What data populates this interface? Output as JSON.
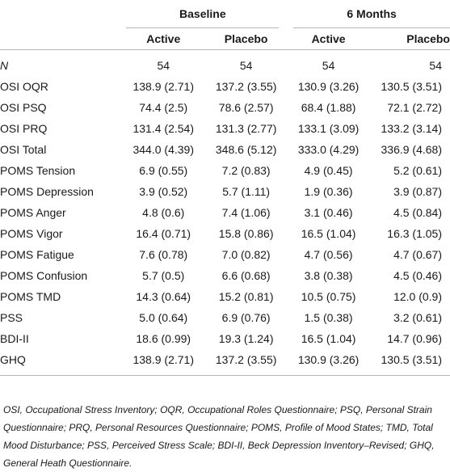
{
  "table": {
    "groups": [
      "Baseline",
      "6 Months"
    ],
    "arms": [
      "Active",
      "Placebo",
      "Active",
      "Placebo"
    ],
    "rows": [
      {
        "label": "N",
        "values": [
          "54",
          "54",
          "54",
          "54"
        ]
      },
      {
        "label": "OSI OQR",
        "values": [
          "138.9 (2.71)",
          "137.2 (3.55)",
          "130.9 (3.26)",
          "130.5 (3.51)"
        ]
      },
      {
        "label": "OSI PSQ",
        "values": [
          "74.4 (2.5)",
          "78.6 (2.57)",
          "68.4 (1.88)",
          "72.1 (2.72)"
        ]
      },
      {
        "label": "OSI PRQ",
        "values": [
          "131.4 (2.54)",
          "131.3 (2.77)",
          "133.1 (3.09)",
          "133.2 (3.14)"
        ]
      },
      {
        "label": "OSI Total",
        "values": [
          "344.0 (4.39)",
          "348.6 (5.12)",
          "333.0 (4.29)",
          "336.9 (4.68)"
        ]
      },
      {
        "label": "POMS Tension",
        "values": [
          "6.9 (0.55)",
          "7.2 (0.83)",
          "4.9 (0.45)",
          "5.2 (0.61)"
        ]
      },
      {
        "label": "POMS Depression",
        "values": [
          "3.9 (0.52)",
          "5.7 (1.11)",
          "1.9 (0.36)",
          "3.9 (0.87)"
        ]
      },
      {
        "label": "POMS Anger",
        "values": [
          "4.8 (0.6)",
          "7.4 (1.06)",
          "3.1 (0.46)",
          "4.5 (0.84)"
        ]
      },
      {
        "label": "POMS Vigor",
        "values": [
          "16.4 (0.71)",
          "15.8 (0.86)",
          "16.5 (1.04)",
          "16.3 (1.05)"
        ]
      },
      {
        "label": "POMS Fatigue",
        "values": [
          "7.6 (0.78)",
          "7.0 (0.82)",
          "4.7 (0.56)",
          "4.7 (0.67)"
        ]
      },
      {
        "label": "POMS Confusion",
        "values": [
          "5.7 (0.5)",
          "6.6 (0.68)",
          "3.8 (0.38)",
          "4.5 (0.46)"
        ]
      },
      {
        "label": "POMS TMD",
        "values": [
          "14.3 (0.64)",
          "15.2 (0.81)",
          "10.5 (0.75)",
          "12.0 (0.9)"
        ]
      },
      {
        "label": "PSS",
        "values": [
          "5.0 (0.64)",
          "6.9 (0.76)",
          "1.5 (0.38)",
          "3.2 (0.61)"
        ]
      },
      {
        "label": "BDI-II",
        "values": [
          "18.6 (0.99)",
          "19.3 (1.24)",
          "16.5 (1.04)",
          "14.7 (0.96)"
        ]
      },
      {
        "label": "GHQ",
        "values": [
          "138.9 (2.71)",
          "137.2 (3.55)",
          "130.9 (3.26)",
          "130.5 (3.51)"
        ]
      }
    ]
  },
  "footnote": "OSI, Occupational Stress Inventory; OQR, Occupational Roles Questionnaire; PSQ, Personal Strain Questionnaire; PRQ, Personal Resources Questionnaire; POMS, Profile of Mood States; TMD, Total Mood Disturbance; PSS, Perceived Stress Scale; BDI-II, Beck Depression Inventory–Revised; GHQ, General Heath Questionnaire."
}
